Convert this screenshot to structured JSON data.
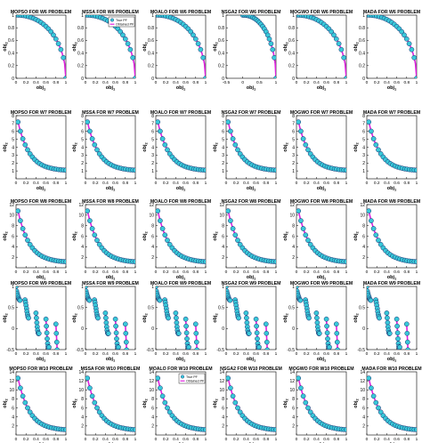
{
  "legend": {
    "true_label": "True PF",
    "obtained_label": "Obtained PF"
  },
  "colors": {
    "true_fill": "#38c8d8",
    "true_stroke": "#1a2a6e",
    "obtained": "#e020e0",
    "axis": "#000000"
  },
  "axis_labels": {
    "x": "obj",
    "x_sub": "1",
    "y": "obj",
    "y_sub": "2"
  },
  "chart_data": [
    {
      "type": "scatter",
      "title": "MOPSO FOR W6 PROBLEM",
      "kind": "convex",
      "ylim": [
        0,
        1
      ],
      "yticks": [
        "0",
        "0.2",
        "0.4",
        "0.6",
        "0.8",
        "1"
      ],
      "xlim": [
        0,
        1
      ],
      "xticks": [
        "0",
        "0.2",
        "0.4",
        "0.6",
        "0.8",
        "1"
      ]
    },
    {
      "type": "scatter",
      "title": "MSSA FOR W6 PROBLEM",
      "kind": "convex",
      "ylim": [
        0,
        1
      ],
      "yticks": [
        "0",
        "0.2",
        "0.4",
        "0.6",
        "0.8",
        "1"
      ],
      "xlim": [
        0,
        1
      ],
      "xticks": [
        "0",
        "0.2",
        "0.4",
        "0.6",
        "0.8",
        "1"
      ],
      "legend": true
    },
    {
      "type": "scatter",
      "title": "MOALO FOR W6 PROBLEM",
      "kind": "convex",
      "ylim": [
        0,
        1
      ],
      "yticks": [
        "0",
        "0.2",
        "0.4",
        "0.6",
        "0.8",
        "1"
      ],
      "xlim": [
        0,
        1
      ],
      "xticks": [
        "0",
        "0.2",
        "0.4",
        "0.6",
        "0.8",
        "1"
      ]
    },
    {
      "type": "scatter",
      "title": "NSGA2 FOR W6 PROBLEM",
      "kind": "convex_nsga",
      "ylim": [
        0,
        1
      ],
      "yticks": [
        "0",
        "0.2",
        "0.4",
        "0.6",
        "0.8",
        "1"
      ],
      "xlim": [
        -0.5,
        1
      ],
      "xticks": [
        "-0.5",
        "0",
        "0.5",
        "1"
      ]
    },
    {
      "type": "scatter",
      "title": "MOGWO FOR W6 PROBLEM",
      "kind": "convex",
      "ylim": [
        0,
        1
      ],
      "yticks": [
        "0",
        "0.2",
        "0.4",
        "0.6",
        "0.8",
        "1"
      ],
      "xlim": [
        0,
        1
      ],
      "xticks": [
        "0",
        "0.2",
        "0.4",
        "0.6",
        "0.8",
        "1"
      ]
    },
    {
      "type": "scatter",
      "title": "MADA FOR W6 PROBLEM",
      "kind": "convex",
      "ylim": [
        0,
        1
      ],
      "yticks": [
        "0",
        "0.2",
        "0.4",
        "0.6",
        "0.8",
        "1"
      ],
      "xlim": [
        0,
        1
      ],
      "xticks": [
        "0",
        "0.2",
        "0.4",
        "0.6",
        "0.8",
        "1"
      ]
    },
    {
      "type": "scatter",
      "title": "MOPSO FOR W7 PROBLEM",
      "kind": "decay",
      "ylim": [
        0,
        8
      ],
      "yticks": [
        "1",
        "2",
        "3",
        "4",
        "5",
        "6",
        "7",
        "8"
      ],
      "xlim": [
        0,
        1
      ],
      "xticks": [
        "0",
        "0.2",
        "0.4",
        "0.6",
        "0.8",
        "1"
      ]
    },
    {
      "type": "scatter",
      "title": "MSSA FOR W7 PROBLEM",
      "kind": "decay",
      "ylim": [
        0,
        8
      ],
      "yticks": [
        "1",
        "2",
        "3",
        "4",
        "5",
        "6",
        "7",
        "8"
      ],
      "xlim": [
        0,
        1
      ],
      "xticks": [
        "0",
        "0.2",
        "0.4",
        "0.6",
        "0.8",
        "1"
      ]
    },
    {
      "type": "scatter",
      "title": "MOALO FOR W7 PROBLEM",
      "kind": "decay",
      "ylim": [
        0,
        8
      ],
      "yticks": [
        "1",
        "2",
        "3",
        "4",
        "5",
        "6",
        "7",
        "8"
      ],
      "xlim": [
        0,
        1
      ],
      "xticks": [
        "0",
        "0.2",
        "0.4",
        "0.6",
        "0.8",
        "1"
      ]
    },
    {
      "type": "scatter",
      "title": "NSGA2 FOR W7 PROBLEM",
      "kind": "decay",
      "ylim": [
        0,
        8
      ],
      "yticks": [
        "1",
        "2",
        "3",
        "4",
        "5",
        "6",
        "7",
        "8"
      ],
      "xlim": [
        0,
        1
      ],
      "xticks": [
        "0",
        "0.2",
        "0.4",
        "0.6",
        "0.8",
        "1"
      ]
    },
    {
      "type": "scatter",
      "title": "MOGWO FOR W7 PROBLEM",
      "kind": "decay",
      "ylim": [
        0,
        8
      ],
      "yticks": [
        "1",
        "2",
        "3",
        "4",
        "5",
        "6",
        "7",
        "8"
      ],
      "xlim": [
        0,
        1
      ],
      "xticks": [
        "0",
        "0.2",
        "0.4",
        "0.6",
        "0.8",
        "1"
      ]
    },
    {
      "type": "scatter",
      "title": "MADA FOR W7 PROBLEM",
      "kind": "decay_mada",
      "ylim": [
        0,
        8
      ],
      "yticks": [
        "1",
        "2",
        "3",
        "4",
        "5",
        "6",
        "7",
        "8"
      ],
      "xlim": [
        0,
        1
      ],
      "xticks": [
        "0",
        "0.2",
        "0.4",
        "0.6",
        "0.8",
        "1"
      ]
    },
    {
      "type": "scatter",
      "title": "MOPSO FOR W8 PROBLEM",
      "kind": "decay",
      "ylim": [
        0,
        12
      ],
      "yticks": [
        "2",
        "4",
        "6",
        "8",
        "10",
        "12"
      ],
      "xlim": [
        0,
        1
      ],
      "xticks": [
        "0",
        "0.2",
        "0.4",
        "0.6",
        "0.8",
        "1"
      ]
    },
    {
      "type": "scatter",
      "title": "MSSA FOR W8 PROBLEM",
      "kind": "decay",
      "ylim": [
        0,
        12
      ],
      "yticks": [
        "2",
        "4",
        "6",
        "8",
        "10",
        "12"
      ],
      "xlim": [
        0,
        1
      ],
      "xticks": [
        "0",
        "0.2",
        "0.4",
        "0.6",
        "0.8",
        "1"
      ]
    },
    {
      "type": "scatter",
      "title": "MOALO FOR W8 PROBLEM",
      "kind": "decay",
      "ylim": [
        0,
        12
      ],
      "yticks": [
        "2",
        "4",
        "6",
        "8",
        "10",
        "12"
      ],
      "xlim": [
        0,
        1
      ],
      "xticks": [
        "0",
        "0.2",
        "0.4",
        "0.6",
        "0.8",
        "1"
      ]
    },
    {
      "type": "scatter",
      "title": "NSGA2 FOR W8 PROBLEM",
      "kind": "decay",
      "ylim": [
        0,
        12
      ],
      "yticks": [
        "2",
        "4",
        "6",
        "8",
        "10",
        "12"
      ],
      "xlim": [
        0,
        1
      ],
      "xticks": [
        "0",
        "0.2",
        "0.4",
        "0.6",
        "0.8",
        "1"
      ]
    },
    {
      "type": "scatter",
      "title": "MOGWO FOR W8 PROBLEM",
      "kind": "decay",
      "ylim": [
        0,
        12
      ],
      "yticks": [
        "2",
        "4",
        "6",
        "8",
        "10",
        "12"
      ],
      "xlim": [
        0,
        1
      ],
      "xticks": [
        "0",
        "0.2",
        "0.4",
        "0.6",
        "0.8",
        "1"
      ]
    },
    {
      "type": "scatter",
      "title": "MADA FOR W8 PROBLEM",
      "kind": "decay",
      "ylim": [
        0,
        12
      ],
      "yticks": [
        "2",
        "4",
        "6",
        "8",
        "10",
        "12"
      ],
      "xlim": [
        0,
        1
      ],
      "xticks": [
        "0",
        "0.2",
        "0.4",
        "0.6",
        "0.8",
        "1"
      ]
    },
    {
      "type": "scatter",
      "title": "MOPSO FOR W9 PROBLEM",
      "kind": "disc",
      "ylim": [
        -0.5,
        1
      ],
      "yticks": [
        "-0.5",
        "0",
        "0.5",
        "1"
      ],
      "xlim": [
        0,
        1
      ],
      "xticks": [
        "0",
        "0.2",
        "0.4",
        "0.6",
        "0.8",
        "1"
      ]
    },
    {
      "type": "scatter",
      "title": "MSSA FOR W9 PROBLEM",
      "kind": "disc",
      "ylim": [
        -0.5,
        1
      ],
      "yticks": [
        "-0.5",
        "0",
        "0.5",
        "1"
      ],
      "xlim": [
        0,
        1
      ],
      "xticks": [
        "0",
        "0.2",
        "0.4",
        "0.6",
        "0.8",
        "1"
      ]
    },
    {
      "type": "scatter",
      "title": "MOALO FOR W9 PROBLEM",
      "kind": "disc",
      "ylim": [
        -0.5,
        1
      ],
      "yticks": [
        "-0.5",
        "0",
        "0.5",
        "1"
      ],
      "xlim": [
        0,
        1
      ],
      "xticks": [
        "0",
        "0.2",
        "0.4",
        "0.6",
        "0.8",
        "1"
      ]
    },
    {
      "type": "scatter",
      "title": "NSGA2 FOR W9 PROBLEM",
      "kind": "disc",
      "ylim": [
        -0.5,
        1
      ],
      "yticks": [
        "-0.5",
        "0",
        "0.5",
        "1"
      ],
      "xlim": [
        0,
        1
      ],
      "xticks": [
        "0",
        "0.2",
        "0.4",
        "0.6",
        "0.8",
        "1"
      ]
    },
    {
      "type": "scatter",
      "title": "MOGWO FOR W9 PROBLEM",
      "kind": "disc",
      "ylim": [
        -0.5,
        1
      ],
      "yticks": [
        "-0.5",
        "0",
        "0.5",
        "1"
      ],
      "xlim": [
        0,
        1
      ],
      "xticks": [
        "0",
        "0.2",
        "0.4",
        "0.6",
        "0.8",
        "1"
      ]
    },
    {
      "type": "scatter",
      "title": "MADA FOR W9 PROBLEM",
      "kind": "disc",
      "ylim": [
        -0.5,
        1
      ],
      "yticks": [
        "-0.5",
        "0",
        "0.5",
        "1"
      ],
      "xlim": [
        0,
        1
      ],
      "xticks": [
        "0",
        "0.2",
        "0.4",
        "0.6",
        "0.8",
        "1"
      ]
    },
    {
      "type": "scatter",
      "title": "MOPSO FOR W10 PROBLEM",
      "kind": "decay",
      "ylim": [
        0,
        14
      ],
      "yticks": [
        "2",
        "4",
        "6",
        "8",
        "10",
        "12",
        "14"
      ],
      "xlim": [
        0,
        1
      ],
      "xticks": [
        "0",
        "0.2",
        "0.4",
        "0.6",
        "0.8",
        "1"
      ]
    },
    {
      "type": "scatter",
      "title": "MSSA FOR W10 PROBLEM",
      "kind": "decay",
      "ylim": [
        0,
        14
      ],
      "yticks": [
        "2",
        "4",
        "6",
        "8",
        "10",
        "12",
        "14"
      ],
      "xlim": [
        0,
        1
      ],
      "xticks": [
        "0",
        "0.2",
        "0.4",
        "0.6",
        "0.8",
        "1"
      ]
    },
    {
      "type": "scatter",
      "title": "MOALO FOR W10 PROBLEM",
      "kind": "decay",
      "ylim": [
        0,
        14
      ],
      "yticks": [
        "2",
        "4",
        "6",
        "8",
        "10",
        "12",
        "14"
      ],
      "xlim": [
        0,
        1
      ],
      "xticks": [
        "0",
        "0.2",
        "0.4",
        "0.6",
        "0.8",
        "1"
      ],
      "legend": true
    },
    {
      "type": "scatter",
      "title": "NSGA2 FOR W10 PROBLEM",
      "kind": "decay",
      "ylim": [
        0,
        14
      ],
      "yticks": [
        "2",
        "4",
        "6",
        "8",
        "10",
        "12",
        "14"
      ],
      "xlim": [
        0,
        1
      ],
      "xticks": [
        "0",
        "0.2",
        "0.4",
        "0.6",
        "0.8",
        "1"
      ]
    },
    {
      "type": "scatter",
      "title": "MOGWO FOR W10 PROBLEM",
      "kind": "decay",
      "ylim": [
        0,
        14
      ],
      "yticks": [
        "2",
        "4",
        "6",
        "8",
        "10",
        "12",
        "14"
      ],
      "xlim": [
        0,
        1
      ],
      "xticks": [
        "0",
        "0.2",
        "0.4",
        "0.6",
        "0.8",
        "1"
      ]
    },
    {
      "type": "scatter",
      "title": "MADA FOR W10 PROBLEM",
      "kind": "decay",
      "ylim": [
        0,
        14
      ],
      "yticks": [
        "2",
        "4",
        "6",
        "8",
        "10",
        "12",
        "14"
      ],
      "xlim": [
        0,
        1
      ],
      "xticks": [
        "0",
        "0.2",
        "0.4",
        "0.6",
        "0.8",
        "1"
      ]
    }
  ]
}
